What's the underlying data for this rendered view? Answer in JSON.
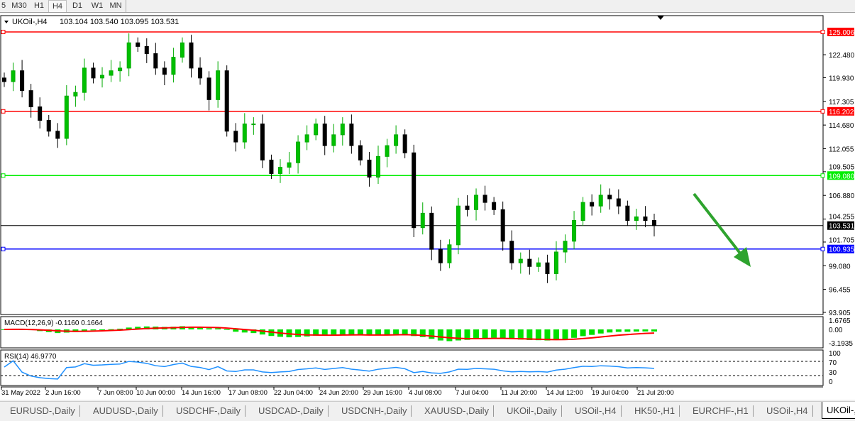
{
  "toolbar": {
    "timeframes": [
      {
        "label": "5"
      },
      {
        "label": "M30"
      },
      {
        "label": "H1"
      },
      {
        "label": "H4",
        "selected": true
      },
      {
        "label": "D1"
      },
      {
        "label": "W1"
      },
      {
        "label": "MN"
      }
    ]
  },
  "chart": {
    "title": "UKOil-,H4",
    "ohlc_text": "103.104 103.540 103.095 103.531",
    "price_axis": [
      "122.480",
      "119.930",
      "117.305",
      "114.680",
      "112.055",
      "109.505",
      "106.880",
      "104.255",
      "101.705",
      "99.080",
      "96.455",
      "93.905"
    ],
    "levels": [
      {
        "price": 125.006,
        "label": "125.006",
        "color": "#ff0000"
      },
      {
        "price": 116.202,
        "label": "116.202",
        "color": "#ff0000"
      },
      {
        "price": 109.08,
        "label": "109.080",
        "color": "#00ee00"
      },
      {
        "price": 100.935,
        "label": "100.935",
        "color": "#0000ff"
      }
    ],
    "current_price": {
      "price": 103.531,
      "label": "103.531",
      "color": "#000000"
    },
    "macd": {
      "label": "MACD(12,26,9) -0.1160 0.1664",
      "axis": [
        "1.6765",
        "0.00",
        "-3.1935"
      ],
      "histogram_color": "#00e000",
      "signal_color": "#ff0000"
    },
    "rsi": {
      "label": "RSI(14) 46.9770",
      "axis": [
        "100",
        "70",
        "30",
        "0"
      ],
      "line_color": "#1e90ff"
    },
    "time_axis": [
      "31 May 2022",
      "2 Jun 16:00",
      "7 Jun 08:00",
      "10 Jun 00:00",
      "14 Jun 16:00",
      "17 Jun 08:00",
      "22 Jun 04:00",
      "24 Jun 20:00",
      "29 Jun 16:00",
      "4 Jul 08:00",
      "7 Jul 04:00",
      "11 Jul 20:00",
      "14 Jul 12:00",
      "19 Jul 04:00",
      "21 Jul 20:00"
    ],
    "arrow": {
      "color": "#2ea32e",
      "direction": "down"
    },
    "bull_color": "#00aa00",
    "bear_color": "#000000"
  },
  "chart_data": {
    "type": "candlestick",
    "price_range": [
      93.905,
      125.006
    ],
    "closes": [
      119.5,
      120.7,
      118.5,
      116.7,
      115.2,
      114,
      113.2,
      117.9,
      118.3,
      121,
      119.9,
      120.2,
      120.7,
      121,
      123.8,
      123.4,
      122.6,
      121,
      120.3,
      122.2,
      123.8,
      121,
      119.9,
      117.5,
      120.7,
      114,
      112.8,
      114.8,
      114.8,
      110.8,
      109.3,
      110,
      110.5,
      112.8,
      113.6,
      114.8,
      112.4,
      113.6,
      114.8,
      112.4,
      110.8,
      108.9,
      111.2,
      112.4,
      113.6,
      111.6,
      103.3,
      104.9,
      100.9,
      99.4,
      101.4,
      105.7,
      105.3,
      106.9,
      106.1,
      105.3,
      101.8,
      99.4,
      99.8,
      99,
      99.4,
      98.2,
      100.6,
      101.8,
      104.1,
      106.1,
      105.7,
      106.9,
      106.5,
      105.7,
      104.1,
      104.5,
      104.1,
      103.531
    ]
  },
  "tabs": [
    {
      "label": "EURUSD-,Daily"
    },
    {
      "label": "AUDUSD-,Daily"
    },
    {
      "label": "USDCHF-,Daily"
    },
    {
      "label": "USDCAD-,Daily"
    },
    {
      "label": "USDCNH-,Daily"
    },
    {
      "label": "XAUUSD-,Daily"
    },
    {
      "label": "UKOil-,Daily"
    },
    {
      "label": "USOil-,H4"
    },
    {
      "label": "HK50-,H1"
    },
    {
      "label": "EURCHF-,H1"
    },
    {
      "label": "USOil-,H4"
    },
    {
      "label": "UKOil-,H4",
      "active": true
    }
  ]
}
